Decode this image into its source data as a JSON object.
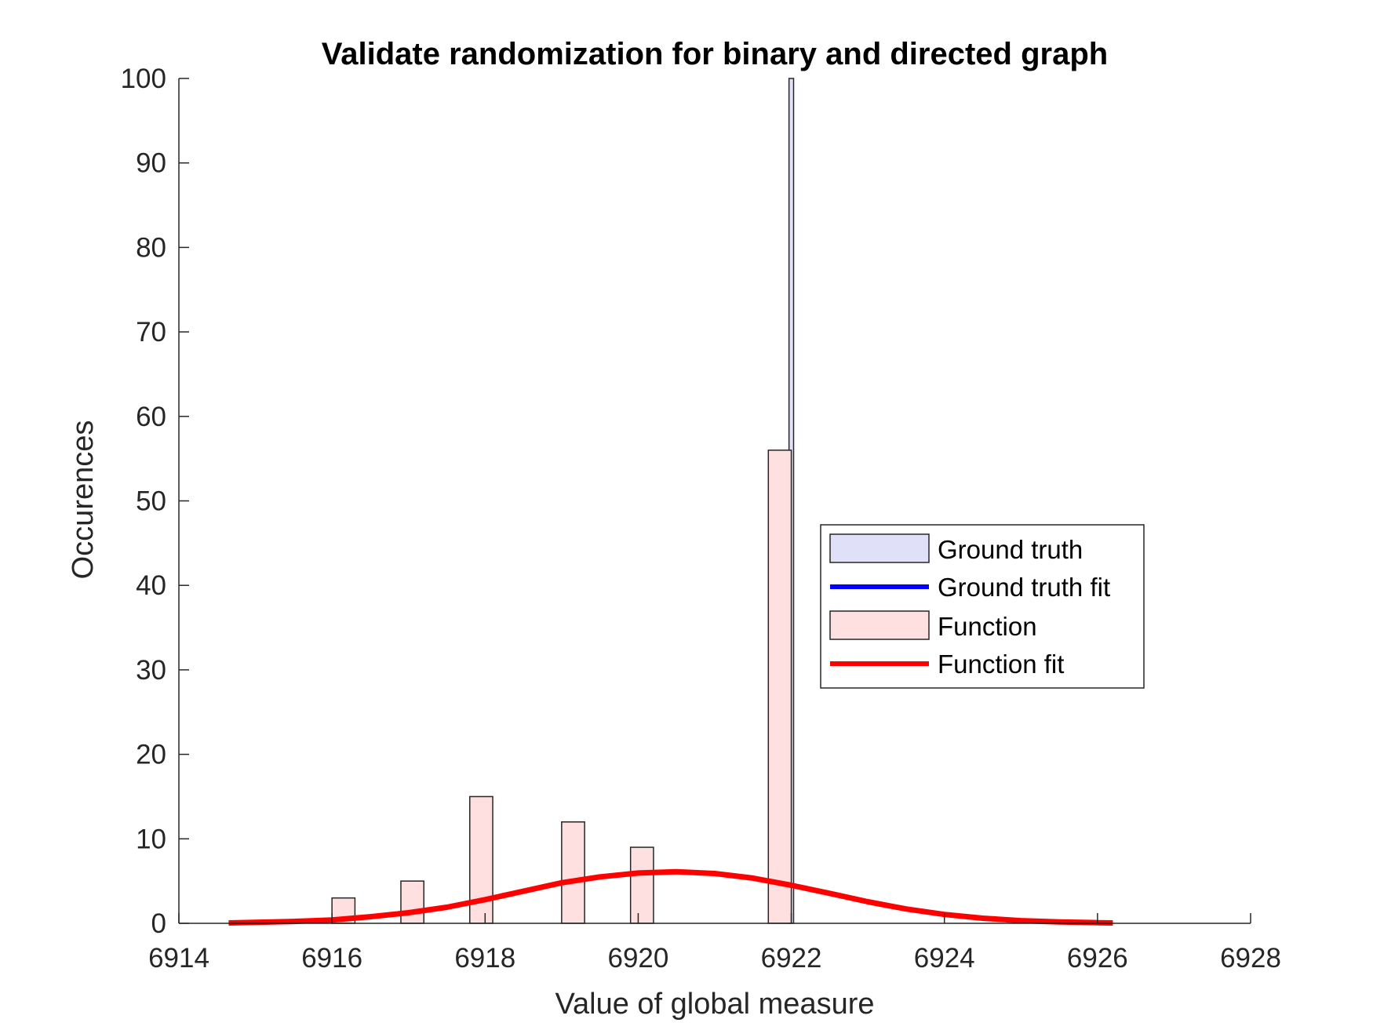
{
  "chart_data": {
    "type": "bar",
    "title": "Validate randomization for binary and directed graph",
    "xlabel": "Value of global measure",
    "ylabel": "Occurences",
    "xlim": [
      6914,
      6928
    ],
    "ylim": [
      0,
      100
    ],
    "xticks": [
      "6914",
      "6916",
      "6918",
      "6920",
      "6922",
      "6924",
      "6926",
      "6928"
    ],
    "yticks": [
      "0",
      "10",
      "20",
      "30",
      "40",
      "50",
      "60",
      "70",
      "80",
      "90",
      "100"
    ],
    "grid": false,
    "legend_placement": "right",
    "series": [
      {
        "name": "Ground truth",
        "kind": "histogram",
        "color": "#e0e0f8",
        "bars": [
          {
            "x0": 6921.97,
            "x1": 6922.03,
            "value": 100
          }
        ]
      },
      {
        "name": "Ground truth fit",
        "kind": "line",
        "color": "#0000ff",
        "points": []
      },
      {
        "name": "Function",
        "kind": "histogram",
        "color": "#ffe0e0",
        "bars": [
          {
            "x0": 6916.0,
            "x1": 6916.3,
            "value": 3
          },
          {
            "x0": 6916.9,
            "x1": 6917.2,
            "value": 5
          },
          {
            "x0": 6917.8,
            "x1": 6918.1,
            "value": 15
          },
          {
            "x0": 6919.0,
            "x1": 6919.3,
            "value": 12
          },
          {
            "x0": 6919.9,
            "x1": 6920.2,
            "value": 9
          },
          {
            "x0": 6921.7,
            "x1": 6922.0,
            "value": 56
          }
        ]
      },
      {
        "name": "Function fit",
        "kind": "line",
        "color": "#ff0000",
        "points": [
          [
            6914.65,
            0.05
          ],
          [
            6915.0,
            0.12
          ],
          [
            6915.5,
            0.22
          ],
          [
            6916.0,
            0.4
          ],
          [
            6916.5,
            0.78
          ],
          [
            6917.0,
            1.25
          ],
          [
            6917.5,
            1.9
          ],
          [
            6918.0,
            2.8
          ],
          [
            6918.5,
            3.8
          ],
          [
            6919.0,
            4.8
          ],
          [
            6919.5,
            5.5
          ],
          [
            6920.0,
            5.95
          ],
          [
            6920.5,
            6.1
          ],
          [
            6921.0,
            5.9
          ],
          [
            6921.5,
            5.35
          ],
          [
            6922.0,
            4.5
          ],
          [
            6922.5,
            3.55
          ],
          [
            6923.0,
            2.55
          ],
          [
            6923.5,
            1.7
          ],
          [
            6924.0,
            1.05
          ],
          [
            6924.5,
            0.6
          ],
          [
            6925.0,
            0.32
          ],
          [
            6925.5,
            0.16
          ],
          [
            6926.0,
            0.07
          ],
          [
            6926.2,
            0.05
          ]
        ]
      }
    ]
  }
}
